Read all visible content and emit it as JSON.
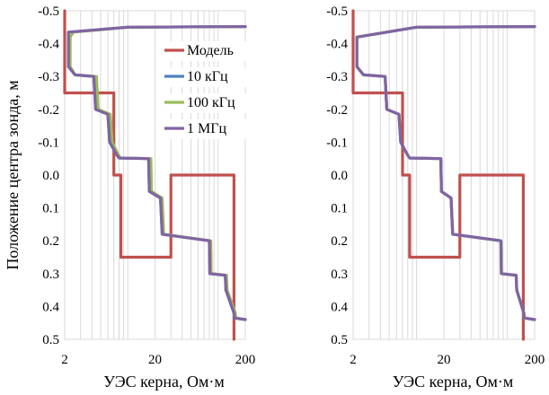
{
  "chart_data": [
    {
      "type": "line",
      "panel": "left",
      "ylabel": "Положение центра зонда, м",
      "xlabel": "УЭС керна,  Ом·м",
      "xscale": "log",
      "xlim": [
        2,
        200
      ],
      "ylim": [
        -0.5,
        0.5
      ],
      "y_inverted": true,
      "x_tick_labels": [
        "2",
        "20",
        "200"
      ],
      "y_tick_labels": [
        "-0.5",
        "-0.4",
        "-0.3",
        "-0.2",
        "-0.1",
        "0.0",
        "0.1",
        "0.2",
        "0.3",
        "0.4",
        "0.5"
      ],
      "grid": "vertical minor log gridlines",
      "legend_position": "top-right",
      "series": [
        {
          "name": "Модель",
          "color": "#c0504d",
          "x": [
            2,
            2,
            7,
            7,
            8.4,
            8.4,
            30,
            30,
            150,
            150
          ],
          "y": [
            -0.5,
            -0.25,
            -0.25,
            0.0,
            0.0,
            0.25,
            0.25,
            0.0,
            0.0,
            0.5
          ]
        },
        {
          "name": "10 кГц",
          "color": "#4f81bd",
          "x": [
            200,
            10,
            2.2,
            2.2,
            2.6,
            4.2,
            4.4,
            6.0,
            6.3,
            7.6,
            8.0,
            17,
            17.3,
            23,
            24,
            80,
            81,
            120,
            122,
            150,
            152,
            200
          ],
          "y": [
            -0.452,
            -0.45,
            -0.435,
            -0.33,
            -0.305,
            -0.3,
            -0.2,
            -0.185,
            -0.1,
            -0.06,
            -0.052,
            -0.05,
            0.05,
            0.07,
            0.18,
            0.2,
            0.3,
            0.305,
            0.35,
            0.42,
            0.435,
            0.44
          ]
        },
        {
          "name": "100 кГц",
          "color": "#9bbb59",
          "x": [
            200,
            10,
            2.5,
            2.3,
            2.3,
            2.6,
            4.5,
            4.7,
            6.4,
            6.7,
            7.9,
            8.3,
            18,
            18.3,
            24,
            25,
            83,
            84,
            124,
            126,
            155,
            157,
            200
          ],
          "y": [
            -0.452,
            -0.45,
            -0.435,
            -0.42,
            -0.33,
            -0.305,
            -0.3,
            -0.2,
            -0.185,
            -0.1,
            -0.06,
            -0.052,
            -0.05,
            0.05,
            0.07,
            0.18,
            0.2,
            0.3,
            0.305,
            0.35,
            0.42,
            0.435,
            0.44
          ]
        },
        {
          "name": "1 МГц",
          "color": "#8064a2",
          "x": [
            200,
            10,
            2.2,
            2.2,
            2.6,
            4.2,
            4.4,
            6.0,
            6.3,
            7.6,
            8.0,
            17,
            17.3,
            23,
            24,
            80,
            81,
            120,
            122,
            150,
            152,
            200
          ],
          "y": [
            -0.452,
            -0.45,
            -0.435,
            -0.33,
            -0.305,
            -0.3,
            -0.2,
            -0.185,
            -0.1,
            -0.06,
            -0.052,
            -0.05,
            0.05,
            0.07,
            0.18,
            0.2,
            0.3,
            0.305,
            0.35,
            0.42,
            0.435,
            0.44
          ]
        }
      ]
    },
    {
      "type": "line",
      "panel": "right",
      "ylabel": "",
      "xlabel": "УЭС керна,  Ом·м",
      "xscale": "log",
      "xlim": [
        2,
        200
      ],
      "ylim": [
        -0.5,
        0.5
      ],
      "y_inverted": true,
      "x_tick_labels": [
        "2",
        "20",
        "200"
      ],
      "y_tick_labels": [
        "-0.5",
        "-0.4",
        "-0.3",
        "-0.2",
        "-0.1",
        "0.0",
        "0.1",
        "0.2",
        "0.3",
        "0.4",
        "0.5"
      ],
      "grid": "vertical minor log gridlines",
      "series": [
        {
          "name": "Модель",
          "color": "#c0504d",
          "x": [
            2,
            2,
            7,
            7,
            8.4,
            8.4,
            30,
            30,
            150,
            150
          ],
          "y": [
            -0.5,
            -0.25,
            -0.25,
            0.0,
            0.0,
            0.25,
            0.25,
            0.0,
            0.0,
            0.5
          ]
        },
        {
          "name": "10 кГц",
          "color": "#4f81bd",
          "x": [
            200,
            10,
            2.2,
            2.2,
            2.6,
            4.5,
            4.7,
            6.4,
            6.7,
            8.0,
            8.4,
            18.5,
            18.8,
            24,
            25,
            85,
            86,
            125,
            127,
            152,
            154,
            200
          ],
          "y": [
            -0.452,
            -0.45,
            -0.42,
            -0.33,
            -0.305,
            -0.3,
            -0.2,
            -0.185,
            -0.1,
            -0.06,
            -0.052,
            -0.05,
            0.05,
            0.07,
            0.18,
            0.2,
            0.3,
            0.305,
            0.35,
            0.42,
            0.435,
            0.44
          ]
        },
        {
          "name": "100 кГц",
          "color": "#9bbb59",
          "x": [
            200,
            10,
            2.2,
            2.2,
            2.6,
            4.5,
            4.7,
            6.4,
            6.7,
            8.0,
            8.4,
            18.5,
            18.8,
            24,
            25,
            85,
            86,
            125,
            127,
            152,
            154,
            200
          ],
          "y": [
            -0.452,
            -0.45,
            -0.42,
            -0.33,
            -0.305,
            -0.3,
            -0.2,
            -0.185,
            -0.1,
            -0.06,
            -0.052,
            -0.05,
            0.05,
            0.07,
            0.18,
            0.2,
            0.3,
            0.305,
            0.35,
            0.42,
            0.435,
            0.44
          ]
        },
        {
          "name": "1 МГц",
          "color": "#8064a2",
          "x": [
            200,
            10,
            2.2,
            2.2,
            2.6,
            4.5,
            4.7,
            6.4,
            6.7,
            8.0,
            8.4,
            18.5,
            18.8,
            24,
            25,
            85,
            86,
            125,
            127,
            152,
            154,
            200
          ],
          "y": [
            -0.452,
            -0.45,
            -0.42,
            -0.33,
            -0.305,
            -0.3,
            -0.2,
            -0.185,
            -0.1,
            -0.06,
            -0.052,
            -0.05,
            0.05,
            0.07,
            0.18,
            0.2,
            0.3,
            0.305,
            0.35,
            0.42,
            0.435,
            0.44
          ]
        }
      ]
    }
  ]
}
